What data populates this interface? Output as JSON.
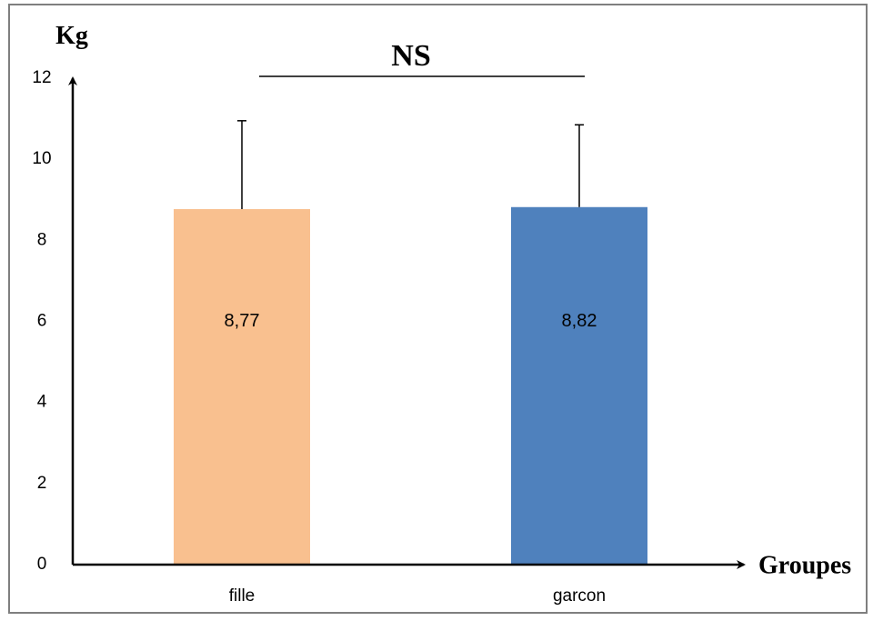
{
  "chart_data": {
    "type": "bar",
    "categories": [
      "fille",
      "garcon"
    ],
    "values": [
      8.77,
      8.82
    ],
    "value_labels": [
      "8,77",
      "8,82"
    ],
    "error_upper": [
      10.95,
      10.85
    ],
    "colors": [
      "#F9C08F",
      "#4F81BD"
    ],
    "ylabel": "Kg",
    "xlabel": "Groupes",
    "ylim": [
      0,
      12
    ],
    "yticks": [
      "0",
      "2",
      "4",
      "6",
      "8",
      "10",
      "12"
    ],
    "significance_label": "NS",
    "grid": false,
    "legend": "none"
  }
}
